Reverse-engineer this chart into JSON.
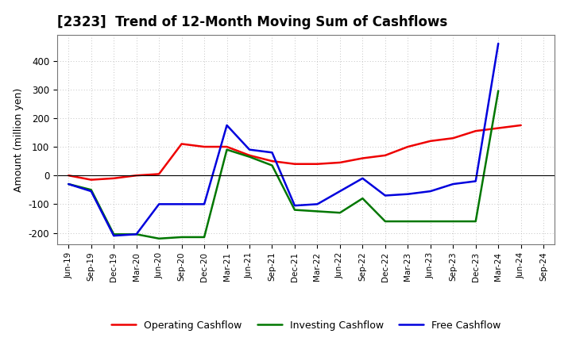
{
  "title": "[2323]  Trend of 12-Month Moving Sum of Cashflows",
  "ylabel": "Amount (million yen)",
  "background_color": "#ffffff",
  "grid_color": "#b0b0b0",
  "x_labels": [
    "Jun-19",
    "Sep-19",
    "Dec-19",
    "Mar-20",
    "Jun-20",
    "Sep-20",
    "Dec-20",
    "Mar-21",
    "Jun-21",
    "Sep-21",
    "Dec-21",
    "Mar-22",
    "Jun-22",
    "Sep-22",
    "Dec-22",
    "Mar-23",
    "Jun-23",
    "Sep-23",
    "Dec-23",
    "Mar-24",
    "Jun-24",
    "Sep-24"
  ],
  "operating_cashflow": [
    0,
    -15,
    -10,
    0,
    5,
    110,
    100,
    100,
    70,
    50,
    40,
    40,
    45,
    60,
    70,
    100,
    120,
    130,
    155,
    165,
    175,
    null
  ],
  "investing_cashflow": [
    -30,
    -50,
    -205,
    -205,
    -220,
    -215,
    -215,
    90,
    65,
    35,
    -120,
    -125,
    -130,
    -80,
    -160,
    -160,
    -160,
    -160,
    -160,
    295,
    null,
    null
  ],
  "free_cashflow": [
    -30,
    -55,
    -210,
    -205,
    -100,
    -100,
    -100,
    175,
    90,
    80,
    -105,
    -100,
    -55,
    -10,
    -70,
    -65,
    -55,
    -30,
    -20,
    460,
    null,
    null
  ],
  "ylim": [
    -240,
    490
  ],
  "yticks": [
    -200,
    -100,
    0,
    100,
    200,
    300,
    400
  ],
  "line_colors": {
    "operating": "#ee0000",
    "investing": "#007700",
    "free": "#0000dd"
  },
  "line_width": 1.8,
  "legend_labels": [
    "Operating Cashflow",
    "Investing Cashflow",
    "Free Cashflow"
  ]
}
